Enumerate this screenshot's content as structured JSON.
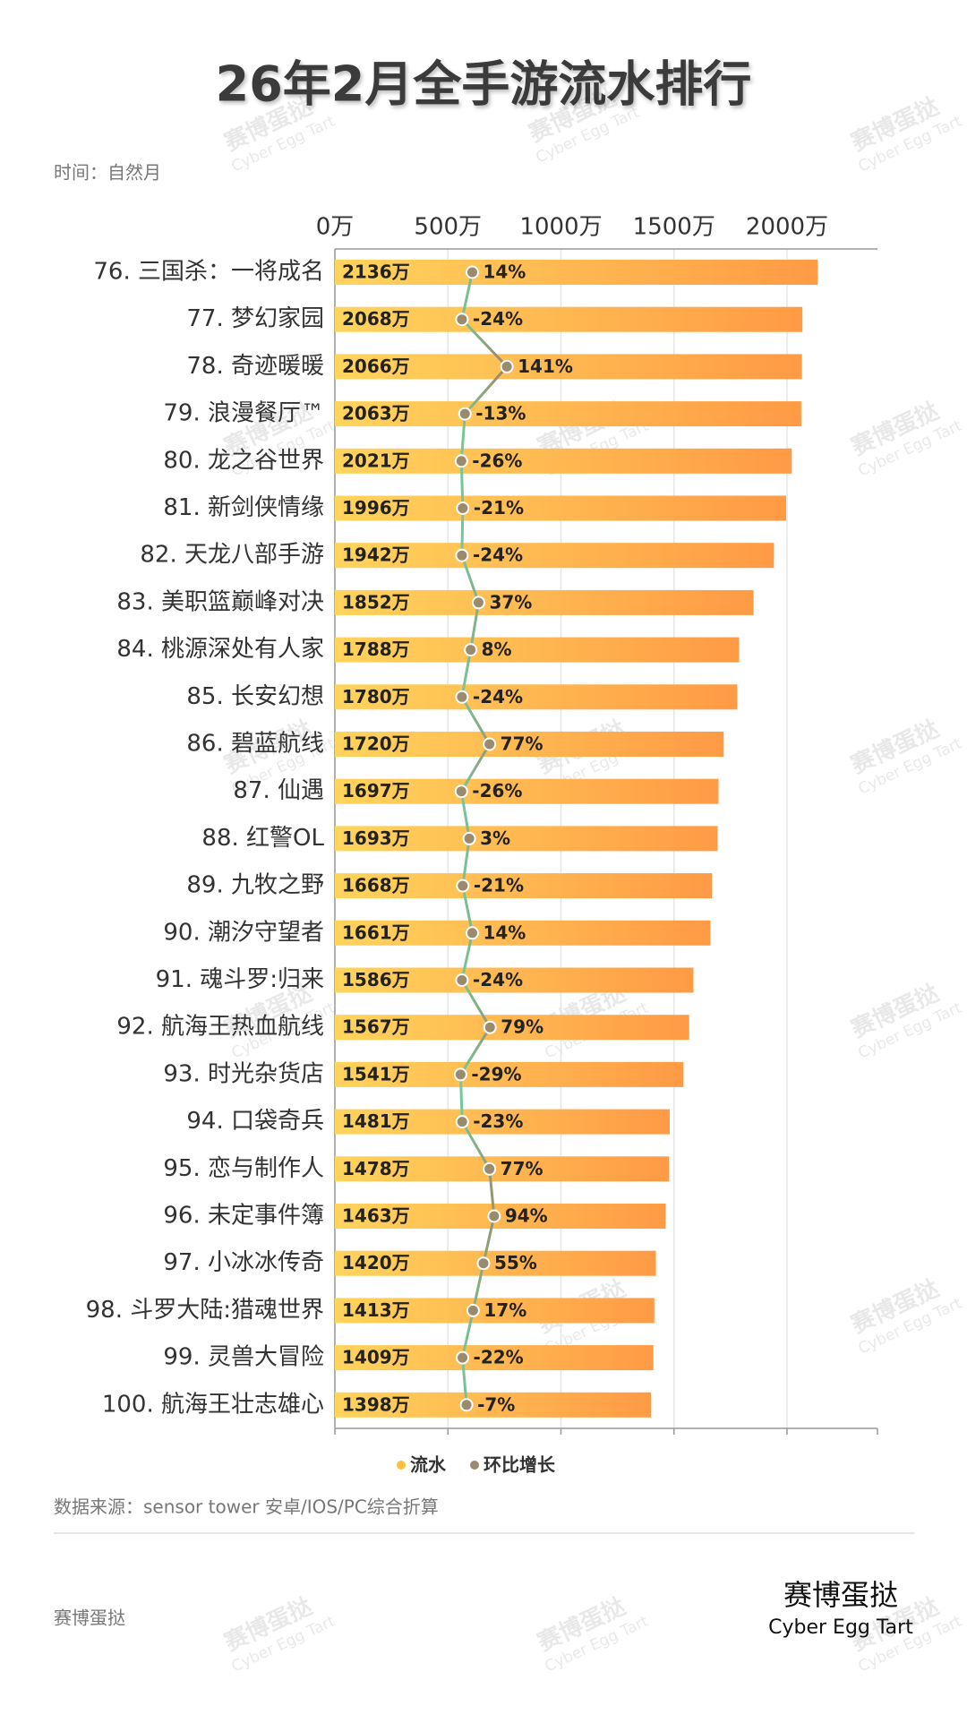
{
  "chart_data": {
    "type": "bar",
    "title": "26年2月全手游流水排行",
    "subtitle": "时间：自然月",
    "categories": [
      "76. 三国杀：一将成名",
      "77. 梦幻家园",
      "78. 奇迹暖暖",
      "79. 浪漫餐厅™",
      "80. 龙之谷世界",
      "81. 新剑侠情缘",
      "82. 天龙八部手游",
      "83. 美职篮巅峰对决",
      "84. 桃源深处有人家",
      "85. 长安幻想",
      "86. 碧蓝航线",
      "87. 仙遇",
      "88. 红警OL",
      "89. 九牧之野",
      "90. 潮汐守望者",
      "91. 魂斗罗:归来",
      "92. 航海王热血航线",
      "93. 时光杂货店",
      "94. 口袋奇兵",
      "95. 恋与制作人",
      "96. 未定事件簿",
      "97. 小冰冰传奇",
      "98. 斗罗大陆:猎魂世界",
      "99. 灵兽大冒险",
      "100. 航海王壮志雄心"
    ],
    "series": [
      {
        "name": "流水",
        "color": "#ffbf3f",
        "values": [
          2136,
          2068,
          2066,
          2063,
          2021,
          1996,
          1942,
          1852,
          1788,
          1780,
          1720,
          1697,
          1693,
          1668,
          1661,
          1586,
          1567,
          1541,
          1481,
          1478,
          1463,
          1420,
          1413,
          1409,
          1398
        ],
        "value_labels": [
          "2136万",
          "2068万",
          "2066万",
          "2063万",
          "2021万",
          "1996万",
          "1942万",
          "1852万",
          "1788万",
          "1780万",
          "1720万",
          "1697万",
          "1693万",
          "1668万",
          "1661万",
          "1586万",
          "1567万",
          "1541万",
          "1481万",
          "1478万",
          "1463万",
          "1420万",
          "1413万",
          "1409万",
          "1398万"
        ]
      },
      {
        "name": "环比增长",
        "color": "#9a8a6e",
        "type": "line",
        "axis": "x2",
        "values": [
          14,
          -24,
          141,
          -13,
          -26,
          -21,
          -24,
          37,
          8,
          -24,
          77,
          -26,
          3,
          -21,
          14,
          -24,
          79,
          -29,
          -23,
          77,
          94,
          55,
          17,
          -22,
          -7
        ],
        "value_labels": [
          "14%",
          "-24%",
          "141%",
          "-13%",
          "-26%",
          "-21%",
          "-24%",
          "37%",
          "8%",
          "-24%",
          "77%",
          "-26%",
          "3%",
          "-21%",
          "14%",
          "-24%",
          "79%",
          "-29%",
          "-23%",
          "77%",
          "94%",
          "55%",
          "17%",
          "-22%",
          "-7%"
        ]
      }
    ],
    "xlim": [
      0,
      2400
    ],
    "xticks": [
      {
        "value": 0,
        "label": "0万"
      },
      {
        "value": 500,
        "label": "500万"
      },
      {
        "value": 1000,
        "label": "1000万"
      },
      {
        "value": 1500,
        "label": "1500万"
      },
      {
        "value": 2000,
        "label": "2000万"
      }
    ],
    "x2lim": [
      -490,
      1500
    ],
    "grid": true,
    "legend": "bottom",
    "source": "数据来源：sensor tower 安卓/IOS/PC综合折算",
    "footer": "赛博蛋挞",
    "brand": {
      "cn": "赛博蛋挞",
      "en": "Cyber Egg Tart"
    }
  }
}
